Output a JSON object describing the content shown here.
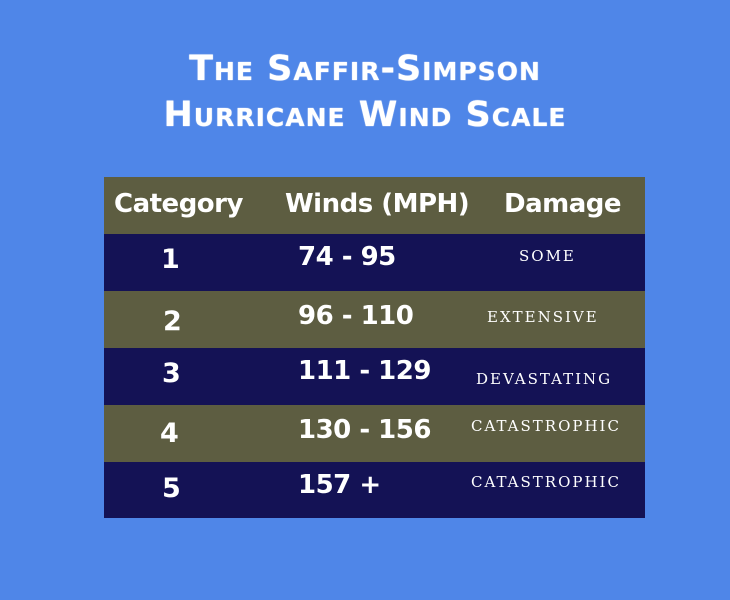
{
  "title": {
    "line1": "The Saffir-Simpson",
    "line2": "Hurricane Wind Scale"
  },
  "table": {
    "headers": {
      "category": "Category",
      "winds": "Winds (MPH)",
      "damage": "Damage"
    },
    "rows": [
      {
        "category": "1",
        "winds": "74 - 95",
        "damage": "SOME"
      },
      {
        "category": "2",
        "winds": "96 - 110",
        "damage": "EXTENSIVE"
      },
      {
        "category": "3",
        "winds": "111 - 129",
        "damage": "DEVASTATING"
      },
      {
        "category": "4",
        "winds": "130 - 156",
        "damage": "CATASTROPHIC"
      },
      {
        "category": "5",
        "winds": "157 +",
        "damage": "CATASTROPHIC"
      }
    ]
  },
  "colors": {
    "background": "#4f86e8",
    "header_row": "#5d5d41",
    "dark_row": "#141255",
    "olive_row": "#5d5d41",
    "text": "#ffffff"
  }
}
